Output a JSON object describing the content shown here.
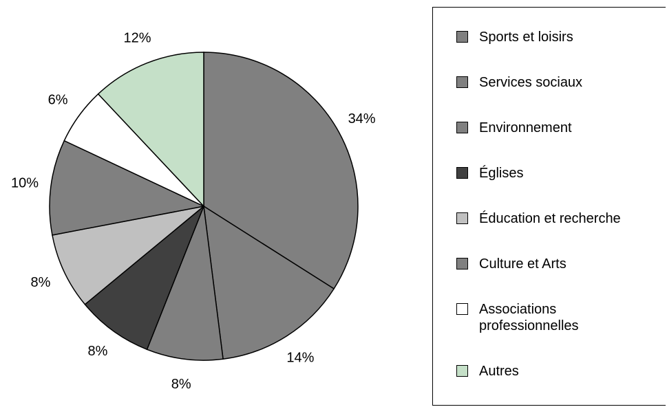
{
  "chart_data": {
    "type": "pie",
    "categories": [
      "Sports et loisirs",
      "Services sociaux",
      "Environnement",
      "Églises",
      "Éducation et recherche",
      "Culture et Arts",
      "Associations professionnelles",
      "Autres"
    ],
    "values": [
      34,
      14,
      8,
      8,
      8,
      10,
      6,
      12
    ],
    "value_labels": [
      "34%",
      "14%",
      "8%",
      "8%",
      "8%",
      "10%",
      "6%",
      "12%"
    ],
    "colors": [
      "#808080",
      "#808080",
      "#808080",
      "#404040",
      "#c0c0c0",
      "#808080",
      "#ffffff",
      "#c5e0c8"
    ],
    "legend": "right"
  }
}
